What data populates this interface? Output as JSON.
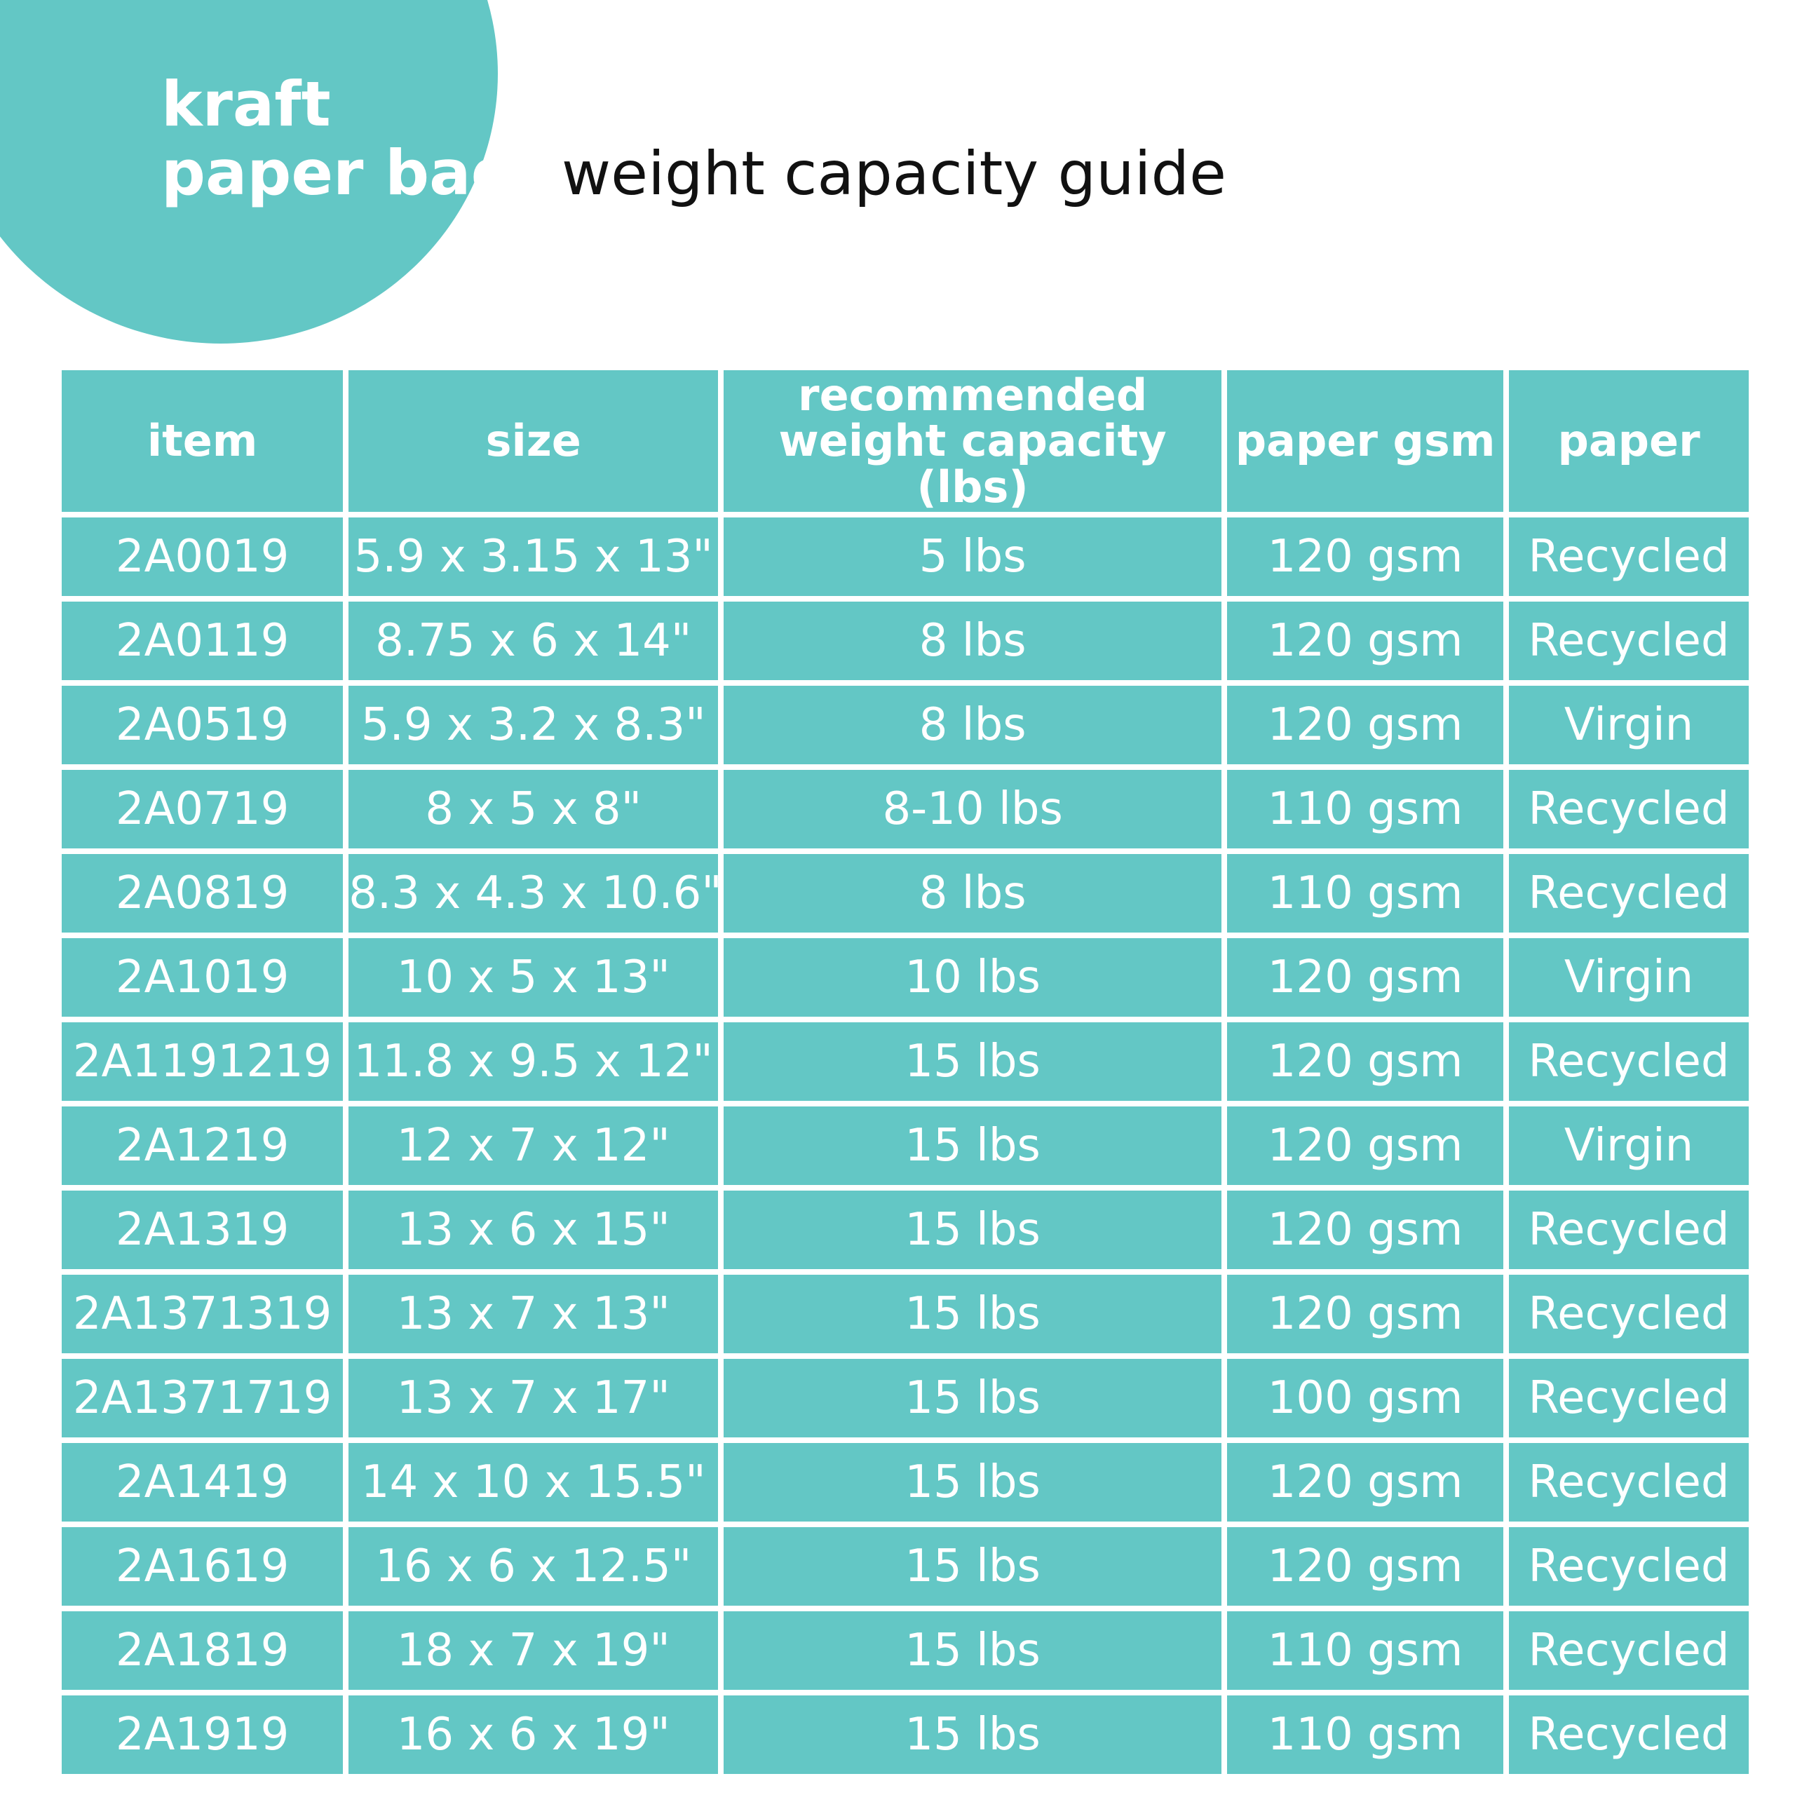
{
  "title": {
    "line1": "kraft",
    "line2_strong": "paper bags",
    "line2_rest": "weight capacity guide"
  },
  "colors": {
    "accent": "#63c7c5",
    "text_dark": "#111111",
    "text_light": "#ffffff"
  },
  "table": {
    "headers": [
      "item",
      "size",
      "recommended weight capacity (lbs)",
      "paper gsm",
      "paper"
    ],
    "rows": [
      [
        "2A0019",
        "5.9 x 3.15 x 13\"",
        "5 lbs",
        "120 gsm",
        "Recycled"
      ],
      [
        "2A0119",
        "8.75 x 6 x 14\"",
        "8 lbs",
        "120 gsm",
        "Recycled"
      ],
      [
        "2A0519",
        "5.9 x 3.2 x 8.3\"",
        "8 lbs",
        "120 gsm",
        "Virgin"
      ],
      [
        "2A0719",
        "8 x 5 x 8\"",
        "8-10 lbs",
        "110 gsm",
        "Recycled"
      ],
      [
        "2A0819",
        "8.3 x 4.3 x 10.6\"",
        "8 lbs",
        "110 gsm",
        "Recycled"
      ],
      [
        "2A1019",
        "10 x 5 x 13\"",
        "10 lbs",
        "120 gsm",
        "Virgin"
      ],
      [
        "2A1191219",
        "11.8 x 9.5 x 12\"",
        "15 lbs",
        "120 gsm",
        "Recycled"
      ],
      [
        "2A1219",
        "12 x 7 x 12\"",
        "15 lbs",
        "120 gsm",
        "Virgin"
      ],
      [
        "2A1319",
        "13 x 6 x 15\"",
        "15 lbs",
        "120 gsm",
        "Recycled"
      ],
      [
        "2A1371319",
        "13 x 7 x 13\"",
        "15 lbs",
        "120 gsm",
        "Recycled"
      ],
      [
        "2A1371719",
        "13 x 7 x 17\"",
        "15 lbs",
        "100 gsm",
        "Recycled"
      ],
      [
        "2A1419",
        "14 x 10 x 15.5\"",
        "15 lbs",
        "120 gsm",
        "Recycled"
      ],
      [
        "2A1619",
        "16 x 6 x 12.5\"",
        "15 lbs",
        "120 gsm",
        "Recycled"
      ],
      [
        "2A1819",
        "18 x 7 x 19\"",
        "15 lbs",
        "110 gsm",
        "Recycled"
      ],
      [
        "2A1919",
        "16 x 6 x 19\"",
        "15 lbs",
        "110 gsm",
        "Recycled"
      ]
    ]
  }
}
